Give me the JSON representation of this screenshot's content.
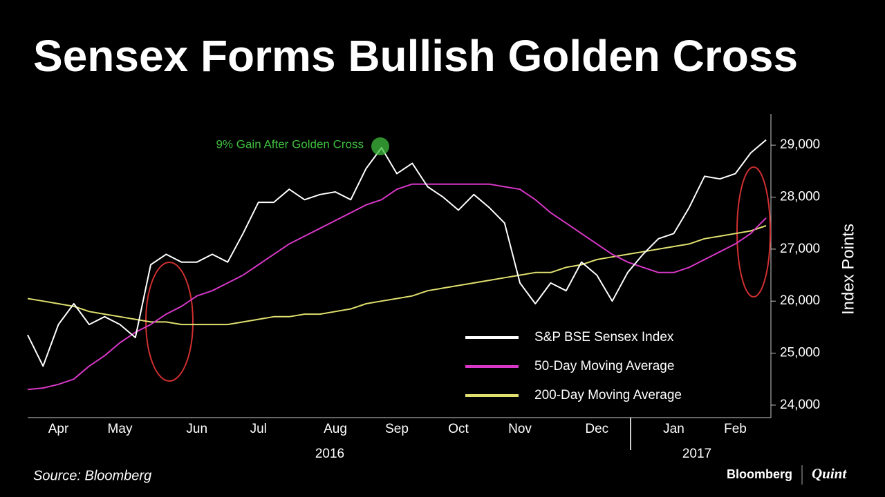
{
  "chart_data": {
    "type": "line",
    "title": "Sensex Forms Bullish Golden Cross",
    "y_label": "Index Points",
    "source": "Source: Bloomberg",
    "brand": [
      "Bloomberg",
      "Quint"
    ],
    "annotation": "9% Gain After Golden Cross",
    "annotation_color": "#3fbf3f",
    "year_labels": [
      "2016",
      "2017"
    ],
    "categories": [
      null,
      null,
      "Apr",
      null,
      null,
      null,
      "May",
      null,
      null,
      null,
      null,
      "Jun",
      null,
      null,
      null,
      "Jul",
      null,
      null,
      null,
      null,
      "Aug",
      null,
      null,
      null,
      "Sep",
      null,
      null,
      null,
      "Oct",
      null,
      null,
      null,
      "Nov",
      null,
      null,
      null,
      null,
      "Dec",
      null,
      null,
      null,
      null,
      "Jan",
      null,
      null,
      null,
      "Feb",
      null,
      null
    ],
    "ylim": [
      23760,
      29600
    ],
    "yticks": [
      {
        "value": 24000,
        "label": "24,000"
      },
      {
        "value": 25000,
        "label": "25,000"
      },
      {
        "value": 26000,
        "label": "26,000"
      },
      {
        "value": 27000,
        "label": "27,000"
      },
      {
        "value": 28000,
        "label": "28,000"
      },
      {
        "value": 29000,
        "label": "29,000"
      }
    ],
    "series": [
      {
        "name": "S&P BSE Sensex Index",
        "color": "#ffffff",
        "values": [
          25350,
          24750,
          25550,
          25950,
          25550,
          25700,
          25550,
          25300,
          26700,
          26900,
          26750,
          26750,
          26900,
          26750,
          27300,
          27900,
          27900,
          28150,
          27950,
          28050,
          28100,
          27950,
          28550,
          28950,
          28450,
          28650,
          28200,
          28000,
          27750,
          28050,
          27800,
          27500,
          26350,
          25950,
          26350,
          26200,
          26750,
          26500,
          26000,
          26550,
          26900,
          27200,
          27300,
          27800,
          28400,
          28350,
          28450,
          28850,
          29100
        ]
      },
      {
        "name": "50-Day Moving Average",
        "color": "#d838c8",
        "values": [
          24300,
          24330,
          24400,
          24500,
          24750,
          24950,
          25200,
          25400,
          25550,
          25750,
          25900,
          26100,
          26200,
          26350,
          26500,
          26700,
          26900,
          27100,
          27250,
          27400,
          27550,
          27700,
          27850,
          27950,
          28150,
          28250,
          28250,
          28250,
          28250,
          28250,
          28250,
          28200,
          28150,
          27950,
          27700,
          27500,
          27300,
          27100,
          26900,
          26750,
          26650,
          26550,
          26550,
          26650,
          26800,
          26950,
          27100,
          27300,
          27600
        ]
      },
      {
        "name": "200-Day Moving Average",
        "color": "#e0e070",
        "values": [
          26050,
          26000,
          25950,
          25900,
          25800,
          25750,
          25700,
          25650,
          25600,
          25600,
          25550,
          25550,
          25550,
          25550,
          25600,
          25650,
          25700,
          25700,
          25750,
          25750,
          25800,
          25850,
          25950,
          26000,
          26050,
          26100,
          26200,
          26250,
          26300,
          26350,
          26400,
          26450,
          26500,
          26550,
          26550,
          26650,
          26700,
          26800,
          26850,
          26900,
          26950,
          27000,
          27050,
          27100,
          27200,
          27250,
          27300,
          27350,
          27450
        ]
      }
    ]
  }
}
